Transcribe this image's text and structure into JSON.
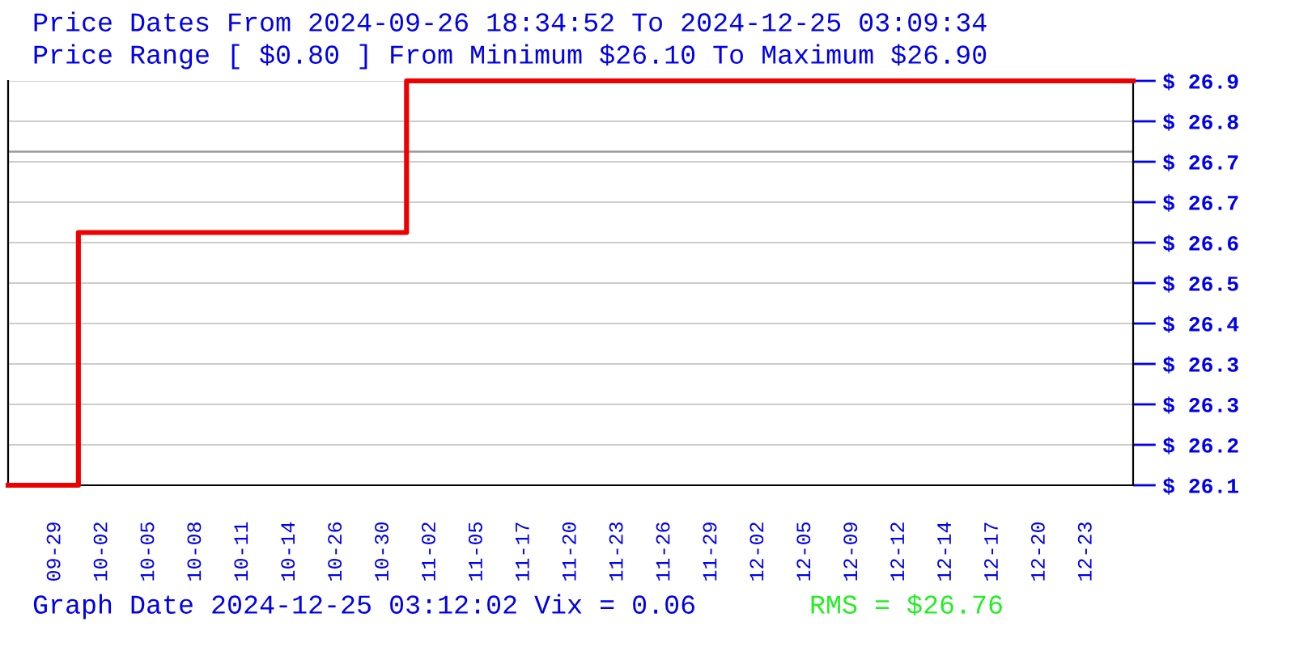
{
  "chart_data": {
    "type": "step",
    "title": "Price Dates From 2024-09-26 18:34:52 To 2024-12-25 03:09:34",
    "subtitle": "Price Range [ $0.80 ] From Minimum $26.10 To Maximum $26.90",
    "categories": [
      null,
      "09-29",
      "10-02",
      "10-05",
      "10-08",
      "10-11",
      "10-14",
      "10-26",
      "10-30",
      "11-02",
      "11-05",
      "11-17",
      "11-20",
      "11-23",
      "11-26",
      "11-29",
      "12-02",
      "12-05",
      "12-09",
      "12-12",
      "12-14",
      "12-17",
      "12-20",
      "12-23",
      null
    ],
    "series": [
      {
        "color": "#ee0000",
        "values": [
          26.1,
          26.1,
          26.6,
          26.6,
          26.6,
          26.6,
          26.6,
          26.6,
          26.6,
          26.9,
          26.9,
          26.9,
          26.9,
          26.9,
          26.9,
          26.9,
          26.9,
          26.9,
          26.9,
          26.9,
          26.9,
          26.9,
          26.9,
          26.9,
          26.9
        ]
      }
    ],
    "ylim": [
      26.1,
      26.9
    ],
    "yticks": [
      {
        "value": 26.1,
        "label": "$ 26.1"
      },
      {
        "value": 26.18,
        "label": "$ 26.2"
      },
      {
        "value": 26.26,
        "label": "$ 26.3"
      },
      {
        "value": 26.34,
        "label": "$ 26.3"
      },
      {
        "value": 26.42,
        "label": "$ 26.4"
      },
      {
        "value": 26.5,
        "label": "$ 26.5"
      },
      {
        "value": 26.58,
        "label": "$ 26.6"
      },
      {
        "value": 26.66,
        "label": "$ 26.7"
      },
      {
        "value": 26.74,
        "label": "$ 26.7"
      },
      {
        "value": 26.82,
        "label": "$ 26.8"
      },
      {
        "value": 26.9,
        "label": "$ 26.9"
      }
    ],
    "grid": "y",
    "ref_lines": [
      {
        "axis": "y",
        "value": 26.76,
        "color": "#999999"
      }
    ],
    "annotations": [
      "Graph Date 2024-12-25 03:12:02 Vix = 0.06",
      "RMS = $26.76"
    ]
  }
}
